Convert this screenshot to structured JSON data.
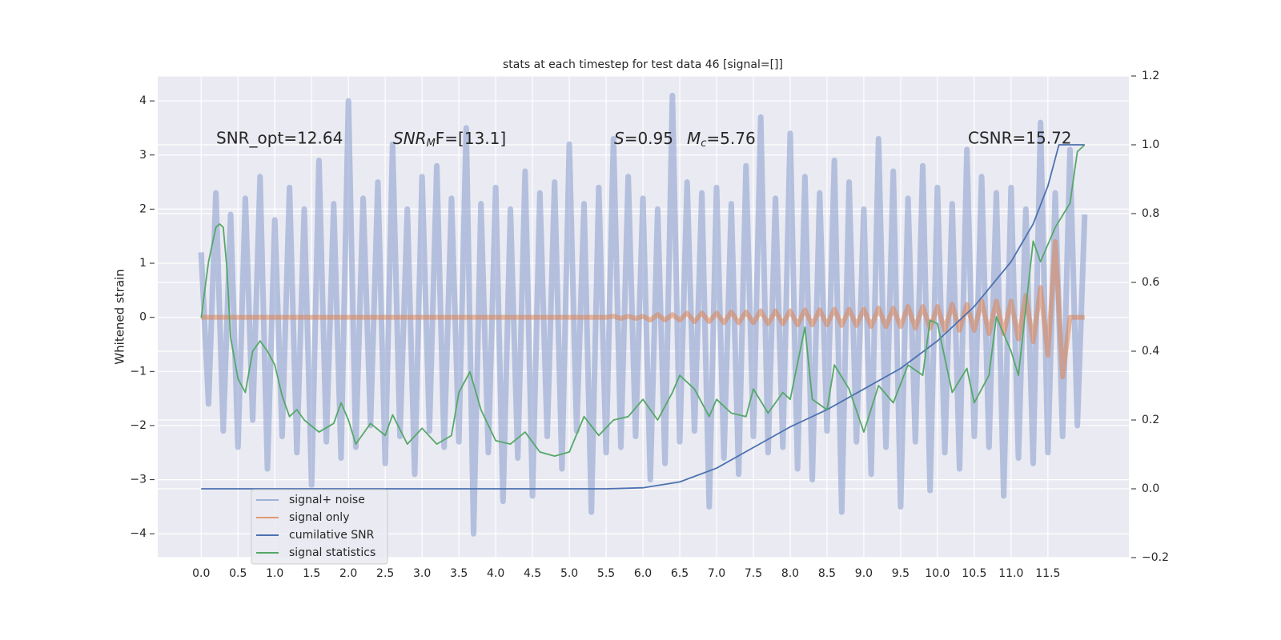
{
  "chart_data": {
    "type": "line",
    "title": "stats at each timestep for test data 46 [signal=[]]",
    "y_label": "Whitened strain",
    "annotations": [
      "SNR_opt=12.64",
      [
        "SNR",
        "M",
        "F=[13.1]"
      ],
      [
        "S",
        "=0.95"
      ],
      [
        "M",
        "c",
        "=5.76"
      ],
      "CSNR=15.72"
    ],
    "xlim": [
      -0.59,
      12.6
    ],
    "ylim": [
      -4.44,
      4.46
    ],
    "y2lim": [
      -0.2,
      1.2
    ],
    "xticks": [
      {
        "value": 0,
        "label": "0.0"
      },
      0.5,
      {
        "value": 1,
        "label": "1.0"
      },
      1.5,
      {
        "value": 2,
        "label": "2.0"
      },
      2.5,
      {
        "value": 3,
        "label": "3.0"
      },
      3.5,
      {
        "value": 4,
        "label": "4.0"
      },
      4.5,
      {
        "value": 5,
        "label": "5.0"
      },
      5.5,
      {
        "value": 6,
        "label": "6.0"
      },
      6.5,
      {
        "value": 7,
        "label": "7.0"
      },
      7.5,
      {
        "value": 8,
        "label": "8.0"
      },
      8.5,
      {
        "value": 9,
        "label": "9.0"
      },
      9.5,
      {
        "value": 10,
        "label": "10.0"
      },
      10.5,
      {
        "value": 11,
        "label": "11.0"
      },
      11.5
    ],
    "yticks": [
      {
        "value": -4,
        "label": "−4"
      },
      {
        "value": -3,
        "label": "−3"
      },
      {
        "value": -2,
        "label": "−2"
      },
      {
        "value": -1,
        "label": "−1"
      },
      0,
      1,
      2,
      3,
      4
    ],
    "y2ticks": [
      {
        "value": -0.2,
        "label": "−0.2"
      },
      {
        "value": 0,
        "label": "0.0"
      },
      0.2,
      0.4,
      0.6,
      0.8,
      {
        "value": 1,
        "label": "1.0"
      },
      1.2
    ],
    "grid": true,
    "legend": "lower left",
    "x": [
      0,
      0.1,
      0.2,
      0.3,
      0.4,
      0.5,
      0.6,
      0.7,
      0.8,
      0.9,
      1,
      1.1,
      1.2,
      1.3,
      1.4,
      1.5,
      1.6,
      1.7,
      1.8,
      1.9,
      2,
      2.1,
      2.2,
      2.3,
      2.4,
      2.5,
      2.6,
      2.7,
      2.8,
      2.9,
      3,
      3.1,
      3.2,
      3.3,
      3.4,
      3.5,
      3.6,
      3.7,
      3.8,
      3.9,
      4,
      4.1,
      4.2,
      4.3,
      4.4,
      4.5,
      4.6,
      4.7,
      4.8,
      4.9,
      5,
      5.1,
      5.2,
      5.3,
      5.4,
      5.5,
      5.6,
      5.7,
      5.8,
      5.9,
      6,
      6.1,
      6.2,
      6.3,
      6.4,
      6.5,
      6.6,
      6.7,
      6.8,
      6.9,
      7,
      7.1,
      7.2,
      7.3,
      7.4,
      7.5,
      7.6,
      7.7,
      7.8,
      7.9,
      8,
      8.1,
      8.2,
      8.3,
      8.4,
      8.5,
      8.6,
      8.7,
      8.8,
      8.9,
      9,
      9.1,
      9.2,
      9.3,
      9.4,
      9.5,
      9.6,
      9.7,
      9.8,
      9.9,
      10,
      10.1,
      10.2,
      10.3,
      10.4,
      10.5,
      10.6,
      10.7,
      10.8,
      10.9,
      11,
      11.1,
      11.2,
      11.3,
      11.4,
      11.5,
      11.6,
      11.7,
      11.8,
      11.9,
      12
    ],
    "series": [
      {
        "name": "signal+ noise",
        "color": "#8da2cf",
        "values": [
          1.2,
          -1.6,
          2.3,
          -2.1,
          1.9,
          -2.4,
          2.2,
          -1.9,
          2.6,
          -2.8,
          1.8,
          -2.2,
          2.4,
          -2.5,
          2.0,
          -3.1,
          2.9,
          -2.3,
          2.1,
          -2.6,
          4.0,
          -2.4,
          2.2,
          -2.0,
          2.5,
          -2.7,
          3.2,
          -2.2,
          2.0,
          -2.9,
          2.6,
          -2.1,
          2.8,
          -2.4,
          2.2,
          -2.3,
          3.5,
          -4.0,
          2.1,
          -2.5,
          2.4,
          -3.4,
          2.0,
          -2.6,
          2.7,
          -3.3,
          2.3,
          -2.2,
          2.5,
          -2.8,
          3.2,
          -2.1,
          2.1,
          -3.6,
          2.4,
          -2.5,
          3.3,
          -2.4,
          2.6,
          -2.2,
          2.2,
          -3.0,
          2.0,
          -2.7,
          4.1,
          -2.3,
          2.5,
          -2.1,
          2.3,
          -3.5,
          2.4,
          -2.6,
          2.1,
          -2.9,
          2.8,
          -2.2,
          3.7,
          -2.5,
          2.2,
          -2.4,
          3.4,
          -2.8,
          2.6,
          -3.0,
          2.3,
          -2.1,
          2.9,
          -3.6,
          2.5,
          -2.3,
          2.0,
          -2.9,
          3.3,
          -2.4,
          2.7,
          -3.5,
          2.2,
          -2.3,
          2.8,
          -3.2,
          2.4,
          -2.5,
          2.1,
          -2.8,
          3.1,
          -2.2,
          2.6,
          -2.4,
          2.3,
          -3.3,
          2.4,
          -2.6,
          2.0,
          -2.7,
          3.6,
          -2.5,
          2.3,
          -2.2,
          3.1,
          -2.0,
          1.9
        ]
      },
      {
        "name": "signal only",
        "color": "#dd8452",
        "values": [
          0,
          0,
          0,
          0,
          0,
          0,
          0,
          0,
          0,
          0,
          0,
          0,
          0,
          0,
          0,
          0,
          0,
          0,
          0,
          0,
          0,
          0,
          0,
          0,
          0,
          0,
          0,
          0,
          0,
          0,
          0,
          0,
          0,
          0,
          0,
          0,
          0,
          0,
          0,
          0,
          0,
          0,
          0,
          0,
          0,
          0,
          0,
          0,
          0,
          0,
          0,
          0,
          0,
          0,
          0,
          0,
          0.02,
          -0.02,
          0.02,
          -0.02,
          0.02,
          -0.05,
          0.05,
          -0.05,
          0.05,
          -0.05,
          0.08,
          -0.08,
          0.08,
          -0.08,
          0.08,
          -0.1,
          0.1,
          -0.1,
          0.1,
          -0.1,
          0.12,
          -0.12,
          0.12,
          -0.12,
          0.12,
          -0.14,
          0.14,
          -0.14,
          0.14,
          -0.14,
          0.15,
          -0.15,
          0.15,
          -0.15,
          0.15,
          -0.17,
          0.17,
          -0.17,
          0.17,
          -0.17,
          0.2,
          -0.2,
          0.2,
          -0.2,
          0.2,
          -0.24,
          0.24,
          -0.24,
          0.24,
          -0.24,
          0.3,
          -0.3,
          0.3,
          -0.3,
          0.3,
          -0.4,
          0.4,
          -0.45,
          0.55,
          -0.7,
          1.4,
          -1.1,
          0,
          0,
          0
        ]
      },
      {
        "name": "cumilative SNR",
        "color": "#4c72b0",
        "axis": "y2",
        "x": [
          0,
          5.5,
          6.0,
          6.5,
          7.0,
          7.5,
          8.0,
          8.5,
          9.0,
          9.5,
          10.0,
          10.5,
          11.0,
          11.3,
          11.5,
          11.6,
          11.65,
          12.0
        ],
        "values": [
          0,
          0,
          0.003,
          0.02,
          0.06,
          0.12,
          0.18,
          0.23,
          0.29,
          0.35,
          0.43,
          0.53,
          0.66,
          0.77,
          0.88,
          0.96,
          1.0,
          1.0
        ]
      },
      {
        "name": "signal statistics",
        "color": "#55a868",
        "axis": "y2",
        "x": [
          0,
          0.1,
          0.2,
          0.25,
          0.3,
          0.35,
          0.4,
          0.5,
          0.6,
          0.7,
          0.8,
          0.9,
          1.0,
          1.1,
          1.2,
          1.3,
          1.4,
          1.6,
          1.8,
          1.9,
          2.0,
          2.1,
          2.3,
          2.5,
          2.6,
          2.8,
          3.0,
          3.2,
          3.4,
          3.5,
          3.65,
          3.8,
          4.0,
          4.2,
          4.4,
          4.6,
          4.8,
          5.0,
          5.2,
          5.4,
          5.6,
          5.8,
          6.0,
          6.2,
          6.4,
          6.5,
          6.7,
          6.9,
          7.0,
          7.2,
          7.4,
          7.5,
          7.7,
          7.9,
          8.0,
          8.2,
          8.3,
          8.5,
          8.6,
          8.8,
          9.0,
          9.2,
          9.4,
          9.6,
          9.8,
          9.9,
          10.0,
          10.2,
          10.4,
          10.5,
          10.7,
          10.8,
          11.0,
          11.1,
          11.3,
          11.4,
          11.6,
          11.8,
          11.9,
          12.0
        ],
        "values": [
          0.497,
          0.66,
          0.76,
          0.77,
          0.76,
          0.64,
          0.44,
          0.32,
          0.28,
          0.4,
          0.43,
          0.4,
          0.36,
          0.27,
          0.21,
          0.23,
          0.2,
          0.165,
          0.19,
          0.25,
          0.2,
          0.13,
          0.19,
          0.155,
          0.215,
          0.13,
          0.176,
          0.13,
          0.155,
          0.28,
          0.34,
          0.23,
          0.14,
          0.13,
          0.165,
          0.107,
          0.095,
          0.107,
          0.21,
          0.155,
          0.2,
          0.21,
          0.26,
          0.2,
          0.28,
          0.33,
          0.29,
          0.21,
          0.26,
          0.22,
          0.21,
          0.29,
          0.22,
          0.28,
          0.26,
          0.47,
          0.26,
          0.23,
          0.36,
          0.29,
          0.165,
          0.3,
          0.25,
          0.36,
          0.33,
          0.49,
          0.48,
          0.28,
          0.35,
          0.25,
          0.33,
          0.5,
          0.4,
          0.33,
          0.72,
          0.66,
          0.76,
          0.83,
          0.98,
          1.0
        ]
      }
    ]
  }
}
